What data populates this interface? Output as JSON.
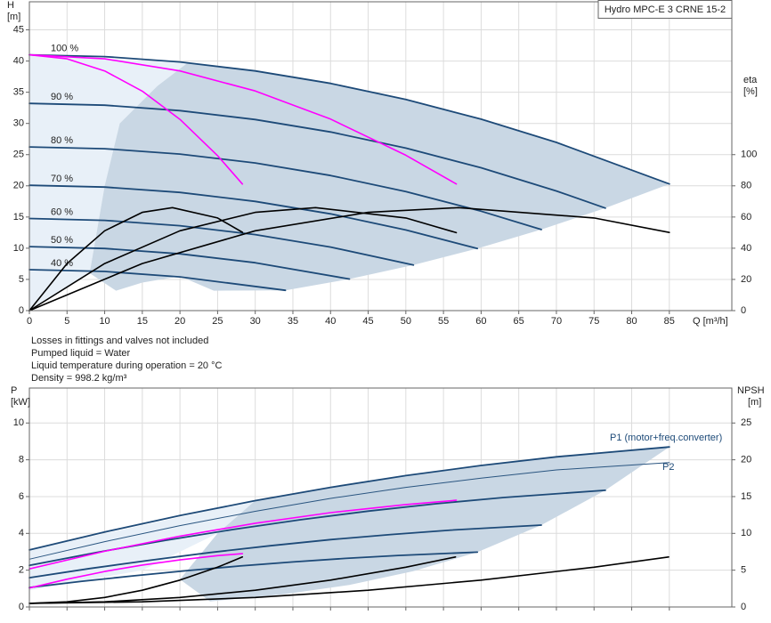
{
  "notes": [
    "Losses in fittings and valves not included",
    "Pumped liquid = Water",
    "Liquid temperature during operation = 20 °C",
    "Density = 998.2 kg/m³"
  ],
  "chart_data": [
    {
      "type": "line",
      "title": "Hydro MPC-E 3 CRNE 15-2",
      "xlabel": "Q [m³/h]",
      "ylabel": [
        "H",
        "[m]"
      ],
      "y2label": [
        "eta",
        "[%]"
      ],
      "xlim": [
        0,
        93.3
      ],
      "xticks": [
        0,
        5,
        10,
        15,
        20,
        25,
        30,
        35,
        40,
        45,
        50,
        55,
        60,
        65,
        70,
        75,
        80,
        85
      ],
      "show_xtick_labels": true,
      "ylim": [
        0,
        49.5
      ],
      "yticks": [
        0,
        5,
        10,
        15,
        20,
        25,
        30,
        35,
        40,
        45
      ],
      "y2lim": [
        0,
        198
      ],
      "y2ticks": [
        0,
        20,
        40,
        60,
        80,
        100
      ],
      "grid": true,
      "speed_labels": [
        "100 %",
        "90 %",
        "80 %",
        "70 %",
        "60 %",
        "50 %",
        "40 %"
      ],
      "series": [
        {
          "kind": "area",
          "color": "#e8f0f8",
          "x": [
            0,
            21,
            17,
            12,
            10,
            8,
            0
          ],
          "values": [
            41,
            39.7,
            36,
            30,
            20,
            6,
            0
          ]
        },
        {
          "kind": "area",
          "color": "#c9d7e4",
          "x": [
            21,
            30,
            40,
            50,
            60,
            70,
            85,
            76.5,
            68,
            59.5,
            51,
            42.5,
            34,
            24.5,
            20,
            15,
            11.5,
            8,
            10,
            12,
            17
          ],
          "values": [
            39.7,
            38.42,
            36.42,
            33.84,
            30.69,
            26.96,
            20.3,
            16.44,
            12.99,
            9.95,
            7.31,
            5.07,
            3.25,
            3.2,
            5.5,
            4.5,
            3.2,
            6,
            20,
            30,
            36
          ]
        },
        {
          "kind": "line",
          "color": "#1d4a78",
          "width": 1.8,
          "x": [
            0,
            10,
            20,
            30,
            40,
            50,
            60,
            70,
            85
          ],
          "values": [
            41,
            40.71,
            39.85,
            38.42,
            36.42,
            33.84,
            30.69,
            26.96,
            20.3
          ]
        },
        {
          "kind": "line",
          "color": "#1d4a78",
          "width": 1.8,
          "x": [
            0,
            10,
            20,
            30,
            40,
            50,
            60,
            70,
            76.5
          ],
          "values": [
            33.21,
            32.92,
            32.06,
            30.63,
            28.63,
            26.05,
            22.9,
            19.17,
            16.44
          ]
        },
        {
          "kind": "line",
          "color": "#1d4a78",
          "width": 1.8,
          "x": [
            0,
            10,
            20,
            30,
            40,
            50,
            60,
            68
          ],
          "values": [
            26.24,
            25.95,
            25.09,
            23.66,
            21.66,
            19.08,
            15.93,
            12.99
          ]
        },
        {
          "kind": "line",
          "color": "#1d4a78",
          "width": 1.8,
          "x": [
            0,
            10,
            20,
            30,
            40,
            50,
            59.5
          ],
          "values": [
            20.09,
            19.8,
            18.94,
            17.51,
            15.51,
            12.93,
            9.95
          ]
        },
        {
          "kind": "line",
          "color": "#1d4a78",
          "width": 1.8,
          "x": [
            0,
            10,
            20,
            30,
            40,
            51
          ],
          "values": [
            14.76,
            14.47,
            13.61,
            12.18,
            10.18,
            7.31
          ]
        },
        {
          "kind": "line",
          "color": "#1d4a78",
          "width": 1.8,
          "x": [
            0,
            10,
            20,
            30,
            42.5
          ],
          "values": [
            10.25,
            9.96,
            9.1,
            7.67,
            5.07
          ]
        },
        {
          "kind": "line",
          "color": "#1d4a78",
          "width": 1.8,
          "x": [
            0,
            10,
            20,
            34
          ],
          "values": [
            6.56,
            6.27,
            5.41,
            3.25
          ]
        },
        {
          "kind": "line",
          "color": "#ff00ff",
          "width": 1.6,
          "x": [
            0,
            5,
            10,
            15,
            20,
            25,
            28.3
          ],
          "values": [
            41,
            40.35,
            38.41,
            35.18,
            30.65,
            24.83,
            20.28
          ]
        },
        {
          "kind": "line",
          "color": "#ff00ff",
          "width": 1.6,
          "x": [
            0,
            10,
            20,
            30,
            40,
            50,
            56.7
          ],
          "values": [
            41,
            40.36,
            38.42,
            35.2,
            30.7,
            24.9,
            20.3
          ]
        },
        {
          "kind": "line",
          "color": "#000000",
          "width": 1.6,
          "axis": "y2",
          "x": [
            0,
            5,
            10,
            15,
            19,
            25,
            28.3
          ],
          "values": [
            0,
            30.2,
            51.2,
            63,
            66,
            59.4,
            50.2
          ]
        },
        {
          "kind": "line",
          "color": "#000000",
          "width": 1.6,
          "axis": "y2",
          "x": [
            0,
            10,
            20,
            30,
            38,
            50,
            56.7
          ],
          "values": [
            0,
            30.2,
            51.2,
            63,
            66,
            59.4,
            50
          ]
        },
        {
          "kind": "line",
          "color": "#000000",
          "width": 1.6,
          "axis": "y2",
          "x": [
            0,
            15,
            30,
            45,
            57,
            75,
            85
          ],
          "values": [
            0,
            30.2,
            51.2,
            63,
            66,
            59.4,
            50.1
          ]
        }
      ]
    },
    {
      "type": "line",
      "ylabel": [
        "P",
        "[kW]"
      ],
      "y2label": [
        "NPSH",
        "[m]"
      ],
      "xlim": [
        0,
        93.3
      ],
      "xticks": [
        0,
        5,
        10,
        15,
        20,
        25,
        30,
        35,
        40,
        45,
        50,
        55,
        60,
        65,
        70,
        75,
        80,
        85
      ],
      "show_xtick_labels": false,
      "ylim": [
        0,
        11.9
      ],
      "yticks": [
        0,
        2,
        4,
        6,
        8,
        10
      ],
      "y2lim": [
        0,
        29.75
      ],
      "y2ticks": [
        0,
        5,
        10,
        15,
        20,
        25
      ],
      "grid": true,
      "curve_labels": [
        "P1 (motor+freq.converter)",
        "P2"
      ],
      "series": [
        {
          "kind": "area",
          "color": "#e8f0f8",
          "x": [
            0,
            30,
            25,
            15,
            0
          ],
          "values": [
            3.1,
            5.78,
            4,
            2,
            0.9
          ]
        },
        {
          "kind": "area",
          "color": "#c9d7e4",
          "x": [
            30,
            40,
            50,
            60,
            70,
            85,
            76.5,
            68,
            59.5,
            51,
            42.5,
            34,
            24,
            20,
            25
          ],
          "values": [
            5.78,
            6.5,
            7.14,
            7.69,
            8.16,
            8.7,
            6.34,
            4.45,
            2.98,
            1.95,
            1.2,
            0.7,
            0.3,
            1.5,
            4
          ]
        },
        {
          "kind": "line",
          "color": "#1d4a78",
          "width": 1.8,
          "x": [
            0,
            10,
            20,
            30,
            40,
            50,
            60,
            70,
            85
          ],
          "values": [
            3.1,
            4.08,
            4.97,
            5.78,
            6.5,
            7.14,
            7.69,
            8.16,
            8.7
          ]
        },
        {
          "kind": "line",
          "color": "#2a5580",
          "width": 1,
          "x": [
            0,
            10,
            20,
            30,
            40,
            50,
            60,
            70,
            85
          ],
          "values": [
            2.6,
            3.55,
            4.42,
            5.2,
            5.9,
            6.5,
            7,
            7.45,
            7.85
          ]
        },
        {
          "kind": "line",
          "color": "#1d4a78",
          "width": 1.8,
          "x": [
            0,
            9,
            18,
            27,
            36,
            45,
            54,
            63,
            76.5
          ],
          "values": [
            2.26,
            2.97,
            3.62,
            4.21,
            4.74,
            5.21,
            5.61,
            5.95,
            6.34
          ]
        },
        {
          "kind": "line",
          "color": "#1d4a78",
          "width": 1.8,
          "x": [
            0,
            8,
            16,
            24,
            32,
            40,
            48,
            56,
            68
          ],
          "values": [
            1.59,
            2.09,
            2.54,
            2.96,
            3.33,
            3.66,
            3.94,
            4.18,
            4.45
          ]
        },
        {
          "kind": "line",
          "color": "#1d4a78",
          "width": 1.8,
          "x": [
            0,
            7,
            14,
            21,
            28,
            35,
            42,
            49,
            59.5
          ],
          "values": [
            1.06,
            1.4,
            1.7,
            1.98,
            2.23,
            2.45,
            2.64,
            2.8,
            2.98
          ]
        },
        {
          "kind": "line",
          "color": "#ff00ff",
          "width": 1.6,
          "x": [
            0,
            5,
            10,
            15,
            20,
            25,
            28.3
          ],
          "values": [
            1.03,
            1.51,
            1.93,
            2.28,
            2.56,
            2.79,
            2.9
          ]
        },
        {
          "kind": "line",
          "color": "#ff00ff",
          "width": 1.6,
          "x": [
            0,
            10,
            20,
            30,
            40,
            50,
            56.7
          ],
          "values": [
            2.07,
            3.03,
            3.85,
            4.55,
            5.13,
            5.57,
            5.8
          ]
        },
        {
          "kind": "line",
          "color": "#000000",
          "width": 1.6,
          "axis": "y2",
          "x": [
            0,
            5,
            10,
            15,
            20,
            25,
            28.3
          ],
          "values": [
            0.5,
            0.7,
            1.29,
            2.27,
            3.65,
            5.41,
            6.8
          ]
        },
        {
          "kind": "line",
          "color": "#000000",
          "width": 1.6,
          "axis": "y2",
          "x": [
            0,
            10,
            20,
            30,
            40,
            50,
            56.6
          ],
          "values": [
            0.5,
            0.7,
            1.29,
            2.27,
            3.65,
            5.41,
            6.8
          ]
        },
        {
          "kind": "line",
          "color": "#000000",
          "width": 1.6,
          "axis": "y2",
          "x": [
            0,
            15,
            30,
            45,
            60,
            75,
            84.9
          ],
          "values": [
            0.5,
            0.7,
            1.29,
            2.27,
            3.65,
            5.41,
            6.8
          ]
        }
      ]
    }
  ]
}
